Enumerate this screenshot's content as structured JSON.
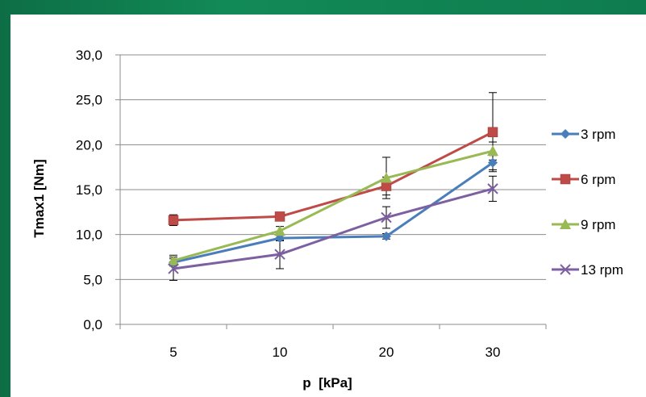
{
  "chart_data": {
    "type": "line",
    "categories": [
      "5",
      "10",
      "20",
      "30"
    ],
    "xlabel": "p  [kPa]",
    "ylabel": "Tmax1 [Nm]",
    "ylim": [
      0,
      30
    ],
    "yticks": [
      "0,0",
      "5,0",
      "10,0",
      "15,0",
      "20,0",
      "25,0",
      "30,0"
    ],
    "grid": true,
    "legend_position": "right",
    "series": [
      {
        "name": "3 rpm",
        "color": "#4a7ebb",
        "marker": "diamond",
        "values": [
          6.9,
          9.6,
          9.8,
          18.0
        ],
        "err": [
          0.4,
          0.3,
          0.3,
          0.8
        ]
      },
      {
        "name": "6 rpm",
        "color": "#be4b48",
        "marker": "square",
        "values": [
          11.6,
          12.0,
          15.4,
          21.4
        ],
        "err": [
          0.6,
          0.4,
          1.0,
          4.4
        ]
      },
      {
        "name": "9 rpm",
        "color": "#98b954",
        "marker": "triangle",
        "values": [
          7.1,
          10.4,
          16.3,
          19.3
        ],
        "err": [
          0.6,
          0.5,
          2.3,
          1.0
        ]
      },
      {
        "name": "13 rpm",
        "color": "#7d60a0",
        "marker": "x",
        "values": [
          6.2,
          7.8,
          11.9,
          15.1
        ],
        "err": [
          1.3,
          1.6,
          1.2,
          1.4
        ]
      }
    ]
  }
}
